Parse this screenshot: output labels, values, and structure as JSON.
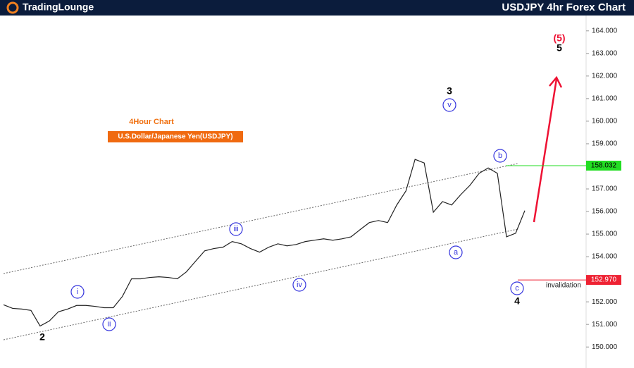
{
  "header": {
    "logo": "TradingLounge",
    "title": "USDJPY 4hr Forex Chart"
  },
  "chart_data": {
    "type": "line",
    "subtitle": "4Hour Chart",
    "instrument": "U.S.Dollar/Japanese Yen(USDJPY)",
    "values": [
      151.87,
      151.71,
      151.68,
      151.62,
      150.93,
      151.15,
      151.56,
      151.68,
      151.84,
      151.84,
      151.8,
      151.74,
      151.74,
      152.24,
      153.02,
      153.02,
      153.08,
      153.11,
      153.08,
      153.02,
      153.33,
      153.8,
      154.26,
      154.36,
      154.42,
      154.67,
      154.57,
      154.36,
      154.2,
      154.42,
      154.57,
      154.48,
      154.54,
      154.67,
      154.73,
      154.79,
      154.73,
      154.79,
      154.88,
      155.2,
      155.51,
      155.6,
      155.51,
      156.29,
      156.91,
      158.31,
      158.15,
      155.97,
      156.44,
      156.29,
      156.75,
      157.16,
      157.69,
      157.93,
      157.69,
      154.88,
      155.04,
      156.04
    ],
    "color": "#222222",
    "ylim": [
      149.07,
      164.68
    ],
    "yticks": [
      {
        "value": 150,
        "label": "150.000"
      },
      {
        "value": 151,
        "label": "151.000"
      },
      {
        "value": 152,
        "label": "152.000"
      },
      {
        "value": 153,
        "label": "153.000"
      },
      {
        "value": 154,
        "label": "154.000"
      },
      {
        "value": 155,
        "label": "155.000"
      },
      {
        "value": 156,
        "label": "156.000"
      },
      {
        "value": 157,
        "label": "157.000"
      },
      {
        "value": 158,
        "label": "158.000"
      },
      {
        "value": 159,
        "label": "159.000"
      },
      {
        "value": 160,
        "label": "160.000"
      },
      {
        "value": 161,
        "label": "161.000"
      },
      {
        "value": 162,
        "label": "162.000"
      },
      {
        "value": 163,
        "label": "163.000"
      },
      {
        "value": 164,
        "label": "164.000"
      }
    ],
    "levels": [
      {
        "value": 158.032,
        "label": "158.032",
        "color": "#22dd22"
      },
      {
        "value": 152.97,
        "label": "152.970",
        "color": "#ee2233"
      }
    ],
    "invalidation": "invalidation",
    "waves": [
      "2",
      "i",
      "ii",
      "iii",
      "iv",
      "v",
      "3",
      "a",
      "b",
      "c",
      "4",
      "(5)",
      "5"
    ]
  }
}
